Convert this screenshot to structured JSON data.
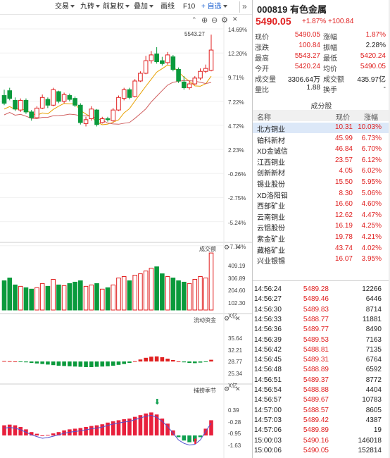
{
  "toolbar": {
    "items": [
      "交易",
      "九砖",
      "前复权",
      "叠加",
      "画线",
      "F10"
    ],
    "add_label": "+ 自选",
    "more": "»"
  },
  "chart": {
    "peak_label": "5543.27",
    "price_axis": [
      "14.69%",
      "12.20%",
      "9.71%",
      "7.22%",
      "4.72%",
      "2.23%",
      "-0.26%",
      "-2.75%",
      "-5.24%",
      "-7.74%"
    ],
    "volume_title": "成交额",
    "volume_axis": [
      "409.19",
      "306.89",
      "204.60",
      "102.30",
      "X亿"
    ],
    "flow_title": "流动资金",
    "flow_axis": [
      "35.64",
      "32.21",
      "28.77",
      "25.34",
      "X亿"
    ],
    "season_title": "捕捞季节",
    "season_axis": [
      "0.39",
      "-0.28",
      "-0.95",
      "-1.63"
    ],
    "colors": {
      "up": "#e02020",
      "down": "#0a9a3c",
      "ma1": "#e8a000",
      "ma2": "#d06060"
    }
  },
  "quote": {
    "code_name": "000819 有色金属",
    "price": "5490.05",
    "change": "+1.87% +100.84",
    "stats": [
      {
        "l1": "现价",
        "v1": "5490.05",
        "c1": "red",
        "l2": "涨幅",
        "v2": "1.87%",
        "c2": "red"
      },
      {
        "l1": "涨跌",
        "v1": "100.84",
        "c1": "red",
        "l2": "振幅",
        "v2": "2.28%",
        "c2": "dark"
      },
      {
        "l1": "最高",
        "v1": "5543.27",
        "c1": "red",
        "l2": "最低",
        "v2": "5420.24",
        "c2": "red"
      },
      {
        "l1": "今开",
        "v1": "5420.24",
        "c1": "red",
        "l2": "均价",
        "v2": "5490.05",
        "c2": "red"
      },
      {
        "l1": "成交量",
        "v1": "3306.64万",
        "c1": "dark",
        "l2": "成交额",
        "v2": "435.97亿",
        "c2": "dark"
      },
      {
        "l1": "量比",
        "v1": "1.88",
        "c1": "dark",
        "l2": "换手",
        "v2": "-",
        "c2": "dark"
      }
    ],
    "sector_title": "成分股",
    "sector_headers": [
      "名称",
      "现价",
      "涨幅"
    ],
    "sector": [
      {
        "name": "北方铜业",
        "price": "10.31",
        "pct": "10.03%"
      },
      {
        "name": "铂科新材",
        "price": "45.99",
        "pct": "6.73%"
      },
      {
        "name": "XD金诚信",
        "price": "46.84",
        "pct": "6.70%"
      },
      {
        "name": "江西铜业",
        "price": "23.57",
        "pct": "6.12%"
      },
      {
        "name": "创新新材",
        "price": "4.05",
        "pct": "6.02%"
      },
      {
        "name": "锡业股份",
        "price": "15.50",
        "pct": "5.95%"
      },
      {
        "name": "XD洛阳钼",
        "price": "8.30",
        "pct": "5.06%"
      },
      {
        "name": "西部矿业",
        "price": "16.60",
        "pct": "4.60%"
      },
      {
        "name": "云南铜业",
        "price": "12.62",
        "pct": "4.47%"
      },
      {
        "name": "云铝股份",
        "price": "16.19",
        "pct": "4.25%"
      },
      {
        "name": "紫金矿业",
        "price": "19.78",
        "pct": "4.21%"
      },
      {
        "name": "藏格矿业",
        "price": "43.74",
        "pct": "4.02%"
      },
      {
        "name": "兴业银锡",
        "price": "16.07",
        "pct": "3.95%"
      }
    ],
    "ticks": [
      {
        "time": "14:56:24",
        "price": "5489.28",
        "vol": "12266",
        "dir": "red"
      },
      {
        "time": "14:56:27",
        "price": "5489.46",
        "vol": "6446",
        "dir": "red"
      },
      {
        "time": "14:56:30",
        "price": "5489.83",
        "vol": "8714",
        "dir": "red"
      },
      {
        "time": "14:56:33",
        "price": "5488.77",
        "vol": "11881",
        "dir": "red"
      },
      {
        "time": "14:56:36",
        "price": "5489.77",
        "vol": "8490",
        "dir": "red"
      },
      {
        "time": "14:56:39",
        "price": "5489.53",
        "vol": "7163",
        "dir": "red"
      },
      {
        "time": "14:56:42",
        "price": "5488.81",
        "vol": "7135",
        "dir": "red"
      },
      {
        "time": "14:56:45",
        "price": "5489.31",
        "vol": "6764",
        "dir": "red"
      },
      {
        "time": "14:56:48",
        "price": "5488.89",
        "vol": "6592",
        "dir": "red"
      },
      {
        "time": "14:56:51",
        "price": "5489.37",
        "vol": "8772",
        "dir": "red"
      },
      {
        "time": "14:56:54",
        "price": "5488.88",
        "vol": "4404",
        "dir": "red"
      },
      {
        "time": "14:56:57",
        "price": "5489.67",
        "vol": "10783",
        "dir": "red"
      },
      {
        "time": "14:57:00",
        "price": "5488.57",
        "vol": "8605",
        "dir": "red"
      },
      {
        "time": "14:57:03",
        "price": "5489.42",
        "vol": "4387",
        "dir": "red"
      },
      {
        "time": "14:57:06",
        "price": "5489.89",
        "vol": "19",
        "dir": "red"
      },
      {
        "time": "15:00:03",
        "price": "5490.16",
        "vol": "146018",
        "dir": "red"
      },
      {
        "time": "15:00:06",
        "price": "5490.05",
        "vol": "152814",
        "dir": "red"
      }
    ]
  }
}
